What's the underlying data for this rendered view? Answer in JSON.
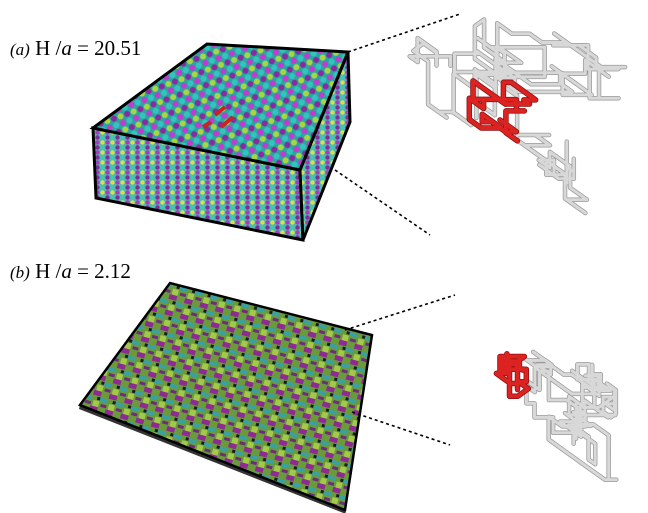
{
  "panels": [
    {
      "tag": "(a)",
      "quantity": "H /",
      "scale": "a",
      "equals": "= 20.51"
    },
    {
      "tag": "(b)",
      "quantity": "H /",
      "scale": "a",
      "equals": "= 2.12"
    }
  ]
}
